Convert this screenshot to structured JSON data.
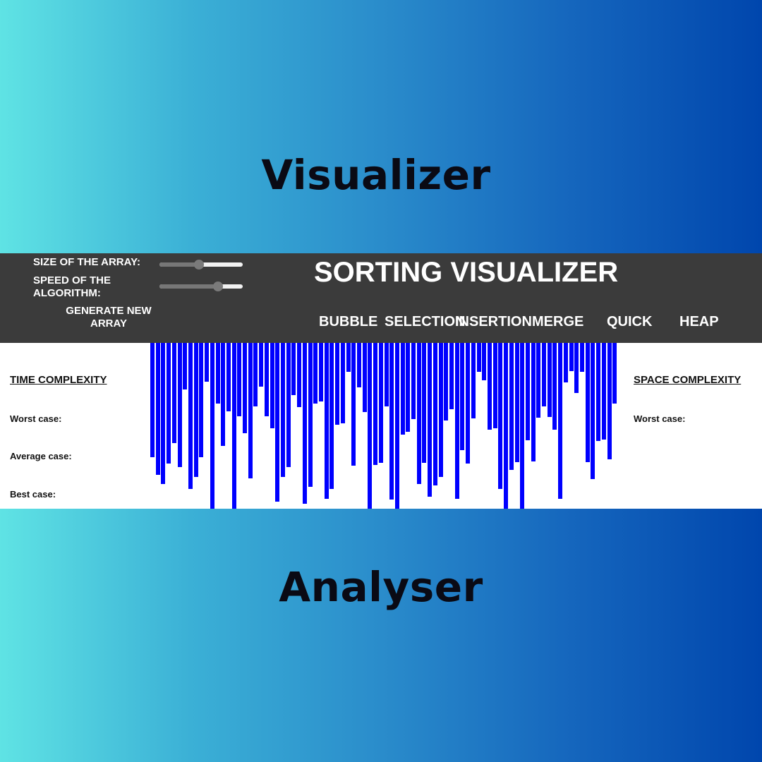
{
  "poster": {
    "top_word": "Visualizer",
    "bottom_word": "Analyser"
  },
  "app": {
    "title": "SORTING VISUALIZER",
    "controls": {
      "size_label": "SIZE OF THE ARRAY:",
      "size_value": 0.47,
      "speed_label": "SPEED OF THE ALGORITHM:",
      "speed_value": 0.73,
      "generate_label": "GENERATE NEW ARRAY"
    },
    "algorithms": [
      "BUBBLE",
      "SELECTION",
      "INSERTION",
      "MERGE",
      "QUICK",
      "HEAP"
    ],
    "time_complexity": {
      "heading": "TIME COMPLEXITY",
      "worst": "Worst case:",
      "average": "Average case:",
      "best": "Best case:"
    },
    "space_complexity": {
      "heading": "SPACE COMPLEXITY",
      "worst": "Worst case:"
    },
    "bar_color": "#0000ff",
    "array": [
      162,
      187,
      200,
      171,
      142,
      176,
      66,
      207,
      190,
      162,
      55,
      235,
      86,
      146,
      97,
      235,
      104,
      128,
      192,
      90,
      62,
      104,
      121,
      225,
      190,
      176,
      74,
      91,
      228,
      204,
      86,
      83,
      221,
      207,
      116,
      114,
      41,
      174,
      63,
      98,
      235,
      173,
      170,
      90,
      222,
      236,
      130,
      126,
      108,
      200,
      170,
      218,
      202,
      190,
      110,
      94,
      221,
      152,
      171,
      107,
      41,
      53,
      123,
      121,
      207,
      235,
      180,
      169,
      235,
      138,
      168,
      106,
      90,
      105,
      123,
      221,
      56,
      40,
      71,
      41,
      169,
      193,
      139,
      137,
      165,
      86
    ]
  }
}
